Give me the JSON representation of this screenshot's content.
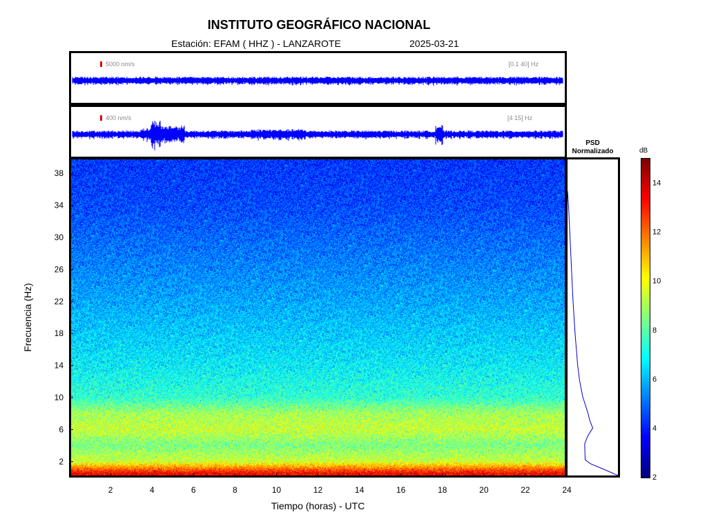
{
  "header": {
    "title": "INSTITUTO GEOGRÁFICO NACIONAL",
    "station": "Estación:  EFAM ( HHZ ) - LANZAROTE",
    "date": "2025-03-21"
  },
  "traces": [
    {
      "scale_label": "5000 nm/s",
      "band_label": "[0.1 40] Hz",
      "color": "#0000ff"
    },
    {
      "scale_label": "400 nm/s",
      "band_label": "[4 15] Hz",
      "color": "#0000ff"
    }
  ],
  "psd_panel": {
    "title_line1": "PSD",
    "title_line2": "Normalizado"
  },
  "colorbar": {
    "unit": "dB",
    "ticks": [
      "2",
      "4",
      "6",
      "8",
      "10",
      "12",
      "14"
    ],
    "range": [
      2,
      15
    ],
    "colormap": "jet"
  },
  "chart_data": {
    "type": "heatmap",
    "title": "INSTITUTO GEOGRÁFICO NACIONAL",
    "xlabel": "Tiempo (horas) - UTC",
    "ylabel": "Frecuencia  (Hz)",
    "xlim": [
      0,
      24
    ],
    "ylim": [
      0,
      40
    ],
    "x_ticks": [
      "2",
      "4",
      "6",
      "8",
      "10",
      "12",
      "14",
      "16",
      "18",
      "20",
      "22",
      "24"
    ],
    "y_ticks": [
      "2",
      "6",
      "10",
      "14",
      "18",
      "22",
      "26",
      "30",
      "34",
      "38"
    ],
    "color_range_db": [
      2,
      15
    ],
    "approx_spectral_levels_db": [
      {
        "freq_hz": 0.5,
        "db": 13.5
      },
      {
        "freq_hz": 2,
        "db": 9.5
      },
      {
        "freq_hz": 4,
        "db": 8.5
      },
      {
        "freq_hz": 6,
        "db": 9.5
      },
      {
        "freq_hz": 8,
        "db": 9.0
      },
      {
        "freq_hz": 10,
        "db": 7.5
      },
      {
        "freq_hz": 14,
        "db": 6.8
      },
      {
        "freq_hz": 18,
        "db": 6.3
      },
      {
        "freq_hz": 22,
        "db": 5.8
      },
      {
        "freq_hz": 26,
        "db": 5.4
      },
      {
        "freq_hz": 30,
        "db": 5.0
      },
      {
        "freq_hz": 34,
        "db": 4.6
      },
      {
        "freq_hz": 38,
        "db": 4.4
      },
      {
        "freq_hz": 40,
        "db": 4.3
      }
    ],
    "psd_normalized": [
      {
        "freq_hz": 0,
        "value": 1.0
      },
      {
        "freq_hz": 0.7,
        "value": 0.75
      },
      {
        "freq_hz": 1.5,
        "value": 0.45
      },
      {
        "freq_hz": 2,
        "value": 0.35
      },
      {
        "freq_hz": 4,
        "value": 0.34
      },
      {
        "freq_hz": 5,
        "value": 0.4
      },
      {
        "freq_hz": 6,
        "value": 0.5
      },
      {
        "freq_hz": 7,
        "value": 0.44
      },
      {
        "freq_hz": 8,
        "value": 0.4
      },
      {
        "freq_hz": 10,
        "value": 0.3
      },
      {
        "freq_hz": 12,
        "value": 0.24
      },
      {
        "freq_hz": 14,
        "value": 0.2
      },
      {
        "freq_hz": 18,
        "value": 0.15
      },
      {
        "freq_hz": 22,
        "value": 0.11
      },
      {
        "freq_hz": 26,
        "value": 0.08
      },
      {
        "freq_hz": 30,
        "value": 0.05
      },
      {
        "freq_hz": 34,
        "value": 0.02
      },
      {
        "freq_hz": 36,
        "value": 0.0
      }
    ]
  }
}
